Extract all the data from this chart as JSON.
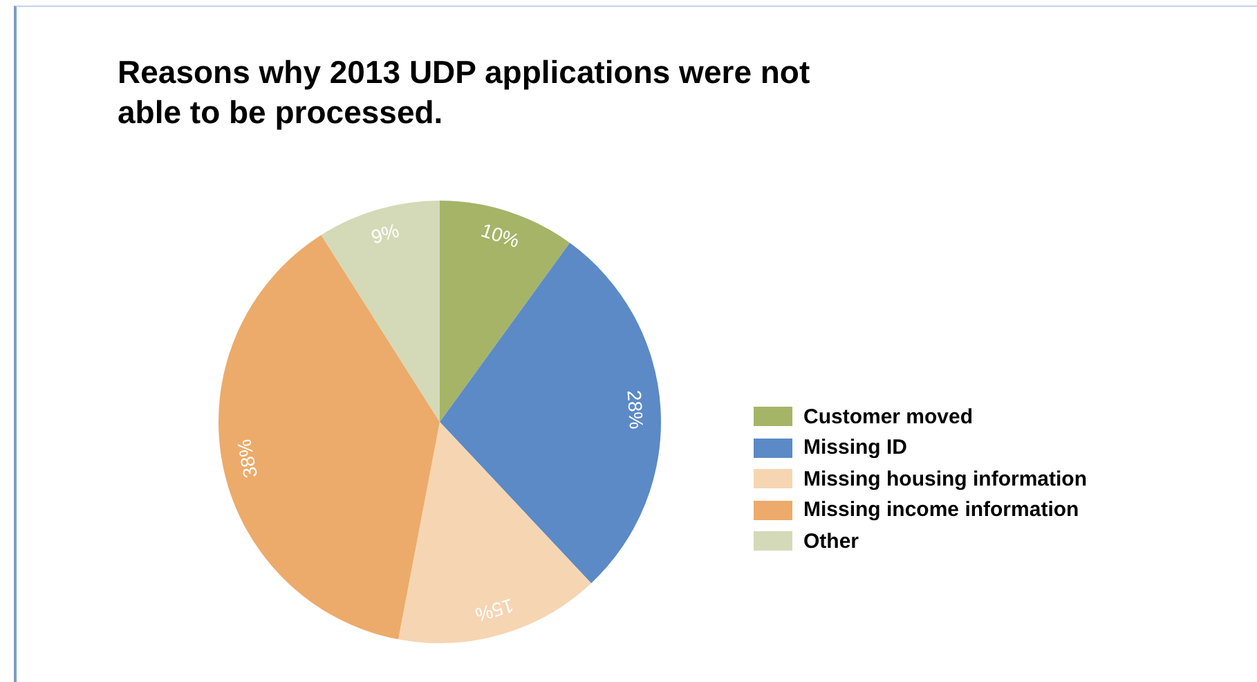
{
  "chart_data": {
    "type": "pie",
    "title": "Reasons why 2013 UDP applications were not able to be processed.",
    "categories": [
      "Customer moved",
      "Missing ID",
      "Missing housing information",
      "Missing income information",
      "Other"
    ],
    "values": [
      10,
      28,
      15,
      38,
      9
    ],
    "colors": [
      "#a6b468",
      "#5b8ac6",
      "#f6d5b3",
      "#ecab6a",
      "#d4dab7"
    ],
    "value_labels": [
      "10%",
      "28%",
      "15%",
      "38%",
      "9%"
    ],
    "legend": "right"
  }
}
